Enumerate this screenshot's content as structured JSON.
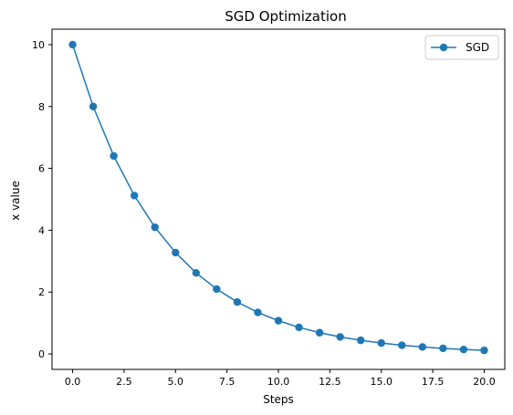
{
  "chart_data": {
    "type": "line",
    "title": "SGD Optimization",
    "xlabel": "Steps",
    "ylabel": "x value",
    "xlim": [
      -1,
      21
    ],
    "ylim": [
      -0.5,
      10.5
    ],
    "xticks": [
      0.0,
      2.5,
      5.0,
      7.5,
      10.0,
      12.5,
      15.0,
      17.5,
      20.0
    ],
    "xtick_labels": [
      "0.0",
      "2.5",
      "5.0",
      "7.5",
      "10.0",
      "12.5",
      "15.0",
      "17.5",
      "20.0"
    ],
    "yticks": [
      0,
      2,
      4,
      6,
      8,
      10
    ],
    "ytick_labels": [
      "0",
      "2",
      "4",
      "6",
      "8",
      "10"
    ],
    "grid": false,
    "legend_position": "top-right",
    "series": [
      {
        "name": "SGD",
        "color": "#1f77b4",
        "marker": "circle",
        "x": [
          0,
          1,
          2,
          3,
          4,
          5,
          6,
          7,
          8,
          9,
          10,
          11,
          12,
          13,
          14,
          15,
          16,
          17,
          18,
          19,
          20
        ],
        "y": [
          10.0,
          8.0,
          6.4,
          5.12,
          4.096,
          3.277,
          2.621,
          2.097,
          1.678,
          1.342,
          1.074,
          0.859,
          0.687,
          0.55,
          0.44,
          0.352,
          0.281,
          0.225,
          0.18,
          0.144,
          0.115
        ]
      }
    ]
  }
}
